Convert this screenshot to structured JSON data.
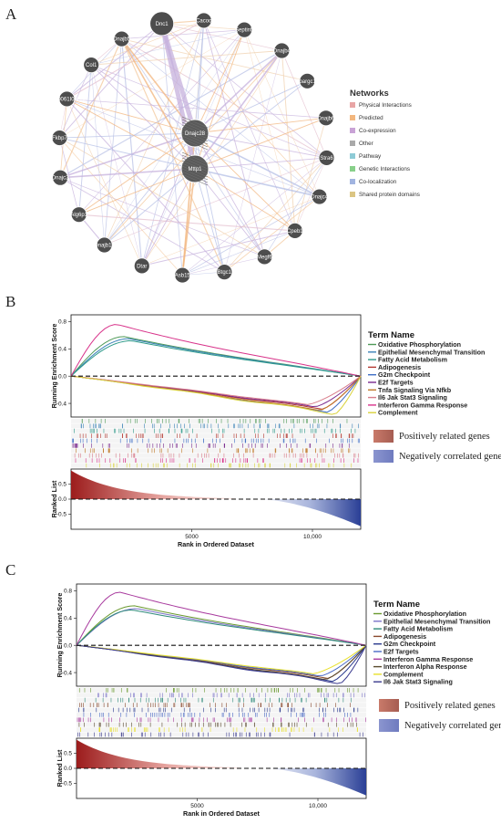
{
  "panels": {
    "A": "A",
    "B": "B",
    "C": "C"
  },
  "network": {
    "center_nodes": [
      "Dnajc28",
      "Mttp1"
    ],
    "outer_nodes": [
      "Dnajb5",
      "Dnc1",
      "Cacoq",
      "Septin5",
      "Dnajb4",
      "Ppargc1b",
      "Dnajb6",
      "Stra6",
      "Dnajc4",
      "Cpeb1",
      "Megf6",
      "Btgc1",
      "Asb15",
      "Dtar",
      "Dnajb13",
      "Alg6p1",
      "Dnajc2",
      "Fkbp7",
      "2310061I04Rik",
      "Col1"
    ],
    "legend_title": "Networks",
    "legend": [
      {
        "label": "Physical Interactions",
        "color": "#e8a5a5"
      },
      {
        "label": "Predicted",
        "color": "#f3b77e"
      },
      {
        "label": "Co-expression",
        "color": "#c9a3d6"
      },
      {
        "label": "Other",
        "color": "#a9a9a9"
      },
      {
        "label": "Pathway",
        "color": "#8ecbd6"
      },
      {
        "label": "Genetic Interactions",
        "color": "#88d08a"
      },
      {
        "label": "Co-localization",
        "color": "#a1b4e0"
      },
      {
        "label": "Shared protein domains",
        "color": "#dbc583"
      }
    ]
  },
  "gsea_B": {
    "ylabel_top": "Running Enrichment Score",
    "ylabel_bottom": "Ranked List",
    "xlabel": "Rank in Ordered Dataset",
    "legend_title": "Term Name",
    "yticks_top": [
      "0.8",
      "0.4",
      "0.0",
      "-0.4"
    ],
    "yticks_bottom": [
      "0.5",
      "0.0",
      "-0.5"
    ],
    "xticks": [
      "5000",
      "10,000"
    ],
    "terms": [
      {
        "label": "Oxidative Phosphorylation",
        "color": "#4f9a57"
      },
      {
        "label": "Epithelial Mesenchymal Transition",
        "color": "#3b82b8"
      },
      {
        "label": "Fatty Acid Metabolism",
        "color": "#2e9a8a"
      },
      {
        "label": "Adipogenesis",
        "color": "#b3372f"
      },
      {
        "label": "G2m Checkpoint",
        "color": "#3f6fc6"
      },
      {
        "label": "E2f Targets",
        "color": "#7a2a8e"
      },
      {
        "label": "Tnfa Signaling Via Nfkb",
        "color": "#c07a2a"
      },
      {
        "label": "Il6 Jak Stat3 Signaling",
        "color": "#d87c8a"
      },
      {
        "label": "Interferon Gamma Response",
        "color": "#d8338a"
      },
      {
        "label": "Complement",
        "color": "#d9d23a"
      }
    ],
    "pos_label": "Positively related genes",
    "neg_label": "Negatively correlated genes"
  },
  "gsea_C": {
    "ylabel_top": "Running Enrichment Score",
    "ylabel_bottom": "Ranked List",
    "xlabel": "Rank in Ordered Dataset",
    "legend_title": "Term Name",
    "yticks_top": [
      "0.8",
      "0.4",
      "0.0",
      "-0.4"
    ],
    "yticks_bottom": [
      "0.5",
      "0.0",
      "-0.5"
    ],
    "xticks": [
      "5000",
      "10,000"
    ],
    "terms": [
      {
        "label": "Oxidative Phosphorylation",
        "color": "#6a9a2e"
      },
      {
        "label": "Epithelial Mesenchymal Transition",
        "color": "#7b73c9"
      },
      {
        "label": "Fatty Acid Metabolism",
        "color": "#2e8a7a"
      },
      {
        "label": "Adipogenesis",
        "color": "#8a4a2e"
      },
      {
        "label": "G2m Checkpoint",
        "color": "#2a3a8e"
      },
      {
        "label": "E2f Targets",
        "color": "#4a6ac6"
      },
      {
        "label": "Interferon Gamma Response",
        "color": "#a83a9e"
      },
      {
        "label": "Interferon Alpha Response",
        "color": "#5a4a2e"
      },
      {
        "label": "Complement",
        "color": "#e8e02a"
      },
      {
        "label": "Il6 Jak Stat3 Signaling",
        "color": "#3a3a8e"
      }
    ],
    "pos_label": "Positively related genes",
    "neg_label": "Negatively correlated genes"
  }
}
